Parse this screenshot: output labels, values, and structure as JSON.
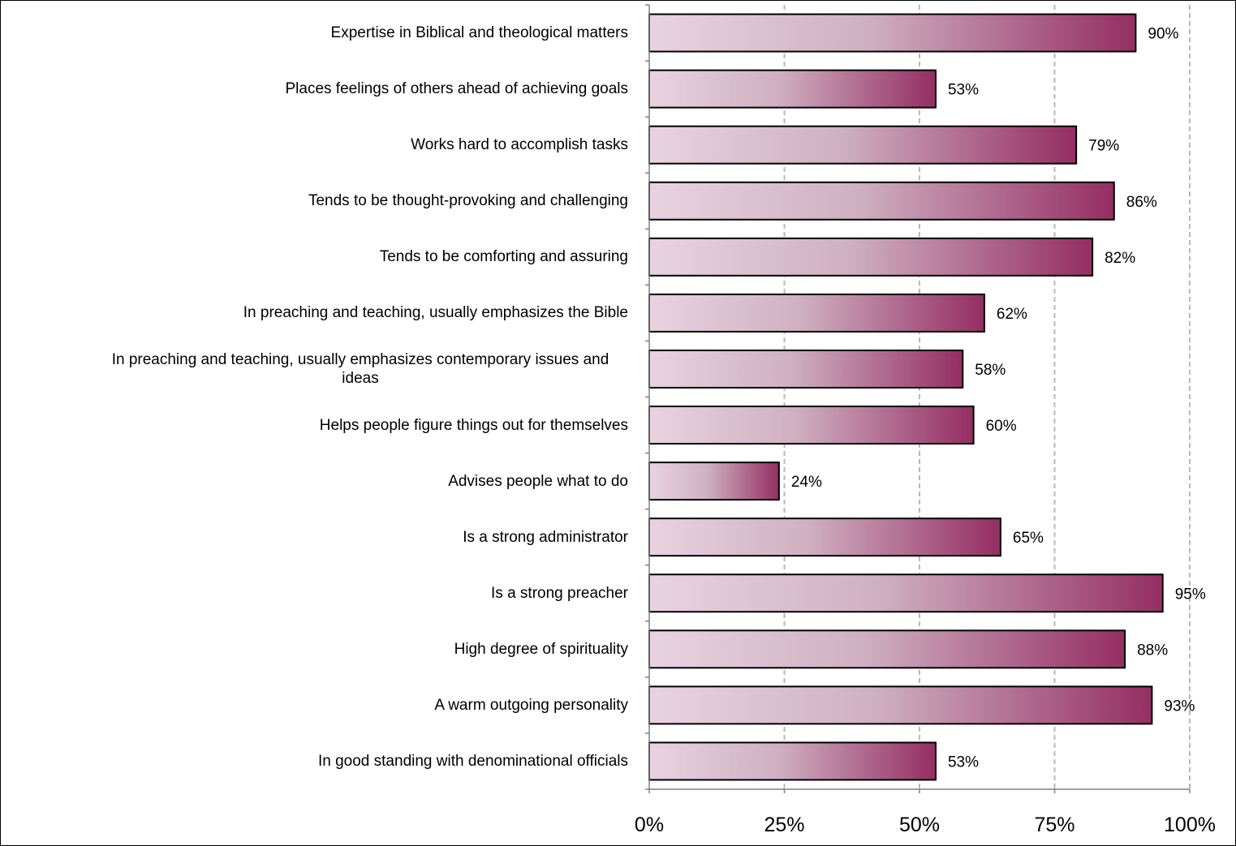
{
  "chart_data": {
    "type": "bar",
    "orientation": "horizontal",
    "categories": [
      "Expertise in Biblical and theological matters",
      "Places feelings of others ahead of achieving goals",
      "Works hard to accomplish tasks",
      "Tends to be thought-provoking and challenging",
      "Tends to be comforting and assuring",
      "In preaching and teaching, usually emphasizes the Bible",
      "In preaching and teaching, usually emphasizes contemporary issues and ideas",
      "Helps people figure things out for themselves",
      "Advises people what to do",
      "Is a strong administrator",
      "Is a strong preacher",
      "High degree of spirituality",
      "A warm outgoing personality",
      "In good standing with denominational officials"
    ],
    "values": [
      90,
      53,
      79,
      86,
      82,
      62,
      58,
      60,
      24,
      65,
      95,
      88,
      93,
      53
    ],
    "data_labels": [
      "90%",
      "53%",
      "79%",
      "86%",
      "82%",
      "62%",
      "58%",
      "60%",
      "24%",
      "65%",
      "95%",
      "88%",
      "93%",
      "53%"
    ],
    "xlim": [
      0,
      100
    ],
    "x_ticks": [
      0,
      25,
      50,
      75,
      100
    ],
    "x_tick_labels": [
      "0%",
      "25%",
      "50%",
      "75%",
      "100%"
    ],
    "grid": "vertical dashed",
    "legend": "none",
    "colors": {
      "bar_light": "#e9d3e1",
      "bar_dark": "#952e63",
      "grid": "#b8b8b8",
      "bar_border": "#000000"
    }
  }
}
